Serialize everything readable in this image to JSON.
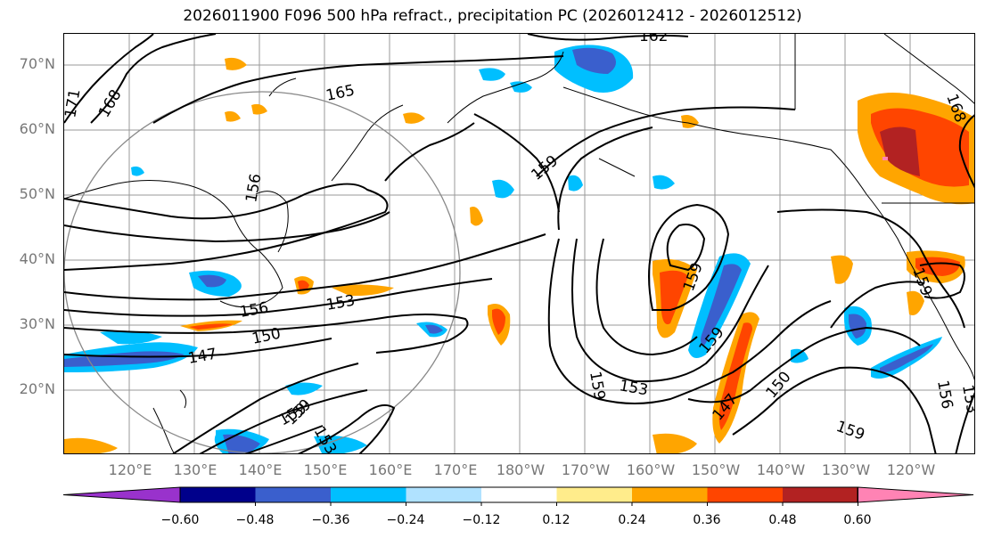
{
  "title": "2026011900 F096 500 hPa refract., precipitation PC (2026012412 - 2026012512)",
  "lat_labels": [
    "70°N",
    "60°N",
    "50°N",
    "40°N",
    "30°N",
    "20°N"
  ],
  "lon_labels": [
    "120°E",
    "130°E",
    "140°E",
    "150°E",
    "160°E",
    "170°E",
    "180°W",
    "170°W",
    "160°W",
    "150°W",
    "140°W",
    "130°W",
    "120°W"
  ],
  "contour_labels": [
    "162",
    "165",
    "168",
    "171",
    "159",
    "156",
    "153",
    "150",
    "147",
    "159",
    "159",
    "153",
    "159",
    "150",
    "147",
    "159",
    "156",
    "153",
    "159",
    "156",
    "153",
    "159",
    "159",
    "168"
  ],
  "colorbar": {
    "ticks": [
      "−0.60",
      "−0.48",
      "−0.36",
      "−0.24",
      "−0.12",
      "0.12",
      "0.24",
      "0.36",
      "0.48",
      "0.60"
    ],
    "colors": [
      "#9932cc",
      "#00008b",
      "#3a5fcd",
      "#00bfff",
      "#b0e2ff",
      "#ffffff",
      "#ffec8b",
      "#ffa500",
      "#ff4500",
      "#b22222",
      "#ff83b4"
    ]
  },
  "colors": {
    "positive_light": "#ffec8b",
    "positive_mid": "#ffa500",
    "positive_high": "#ff4500",
    "positive_max": "#b22222",
    "negative_light": "#b0e2ff",
    "negative_mid": "#00bfff",
    "negative_high": "#3a5fcd",
    "negative_max": "#00008b"
  }
}
